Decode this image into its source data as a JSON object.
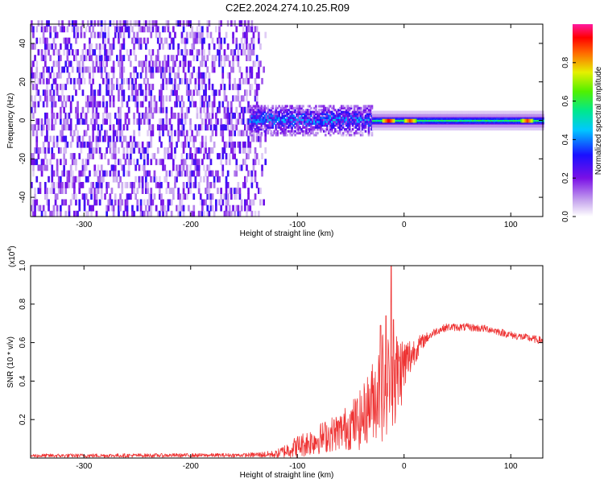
{
  "title": "C2E2.2024.274.10.25.R09",
  "colors": {
    "line": "#ee3333",
    "axis": "#000000",
    "spectrogram_bg": "#ffffff"
  },
  "chart_data": [
    {
      "type": "heatmap",
      "xlabel": "Height of straight line (km)",
      "ylabel": "Frequency (Hz)",
      "xlim": [
        -350,
        130
      ],
      "ylim": [
        -50,
        50
      ],
      "x_ticks": [
        -300,
        -200,
        -100,
        0,
        100
      ],
      "x_tick_labels": [
        "-300",
        "-200",
        "-100",
        "0",
        "100"
      ],
      "y_ticks": [
        -40,
        -20,
        0,
        20,
        40
      ],
      "y_tick_labels": [
        "-40",
        "-20",
        "0",
        "20",
        "40"
      ],
      "colorbar": {
        "label": "Normalized spectral amplitude",
        "range": [
          0,
          1
        ],
        "ticks": [
          0.0,
          0.2,
          0.4,
          0.6,
          0.8
        ],
        "tick_labels": [
          "0.0",
          "0.2",
          "0.4",
          "0.6",
          "0.8"
        ]
      },
      "regions": [
        {
          "x_range": [
            -350,
            -130
          ],
          "freq_range": [
            -50,
            50
          ],
          "amplitude": 0.15,
          "pattern": "noise"
        },
        {
          "x_range": [
            -145,
            -30
          ],
          "freq_range": [
            -8,
            8
          ],
          "amplitude": 0.35,
          "pattern": "band"
        },
        {
          "x_range": [
            -30,
            130
          ],
          "freq_range": [
            -3,
            3
          ],
          "amplitude": 0.55,
          "pattern": "carrier"
        }
      ],
      "carrier_peaks": [
        {
          "x": -15,
          "amplitude": 0.95
        },
        {
          "x": 5,
          "amplitude": 0.9
        },
        {
          "x": 115,
          "amplitude": 0.9
        }
      ]
    },
    {
      "type": "line",
      "xlabel": "Height of straight line (km)",
      "ylabel": "SNR (10 * v/v)",
      "y_scale_label": "(x10",
      "y_scale_exponent": "4",
      "y_scale_suffix": ")",
      "xlim": [
        -350,
        130
      ],
      "ylim": [
        0,
        1.0
      ],
      "x_ticks": [
        -300,
        -200,
        -100,
        0,
        100
      ],
      "x_tick_labels": [
        "-300",
        "-200",
        "-100",
        "0",
        "100"
      ],
      "y_ticks": [
        0.2,
        0.4,
        0.6,
        0.8,
        1.0
      ],
      "y_tick_labels": [
        "0.2",
        "0.4",
        "0.6",
        "0.8",
        "1.0"
      ],
      "series": [
        {
          "envelope": {
            "x": [
              -350,
              -150,
              -120,
              -100,
              -80,
              -60,
              -40,
              -30,
              -20,
              -10,
              0,
              10,
              20,
              30,
              40,
              60,
              80,
              100,
              130
            ],
            "mean": [
              0.012,
              0.015,
              0.02,
              0.06,
              0.1,
              0.14,
              0.2,
              0.3,
              0.38,
              0.4,
              0.48,
              0.56,
              0.62,
              0.66,
              0.68,
              0.68,
              0.67,
              0.64,
              0.61
            ],
            "spread": [
              0.01,
              0.01,
              0.02,
              0.06,
              0.08,
              0.1,
              0.16,
              0.2,
              0.3,
              0.3,
              0.16,
              0.07,
              0.03,
              0.02,
              0.02,
              0.02,
              0.02,
              0.02,
              0.02
            ]
          },
          "spikes": [
            {
              "x": -12,
              "y": 1.0
            },
            {
              "x": -17,
              "y": 0.74
            },
            {
              "x": -22,
              "y": 0.69
            },
            {
              "x": -10,
              "y": 0.72
            }
          ]
        }
      ]
    }
  ]
}
